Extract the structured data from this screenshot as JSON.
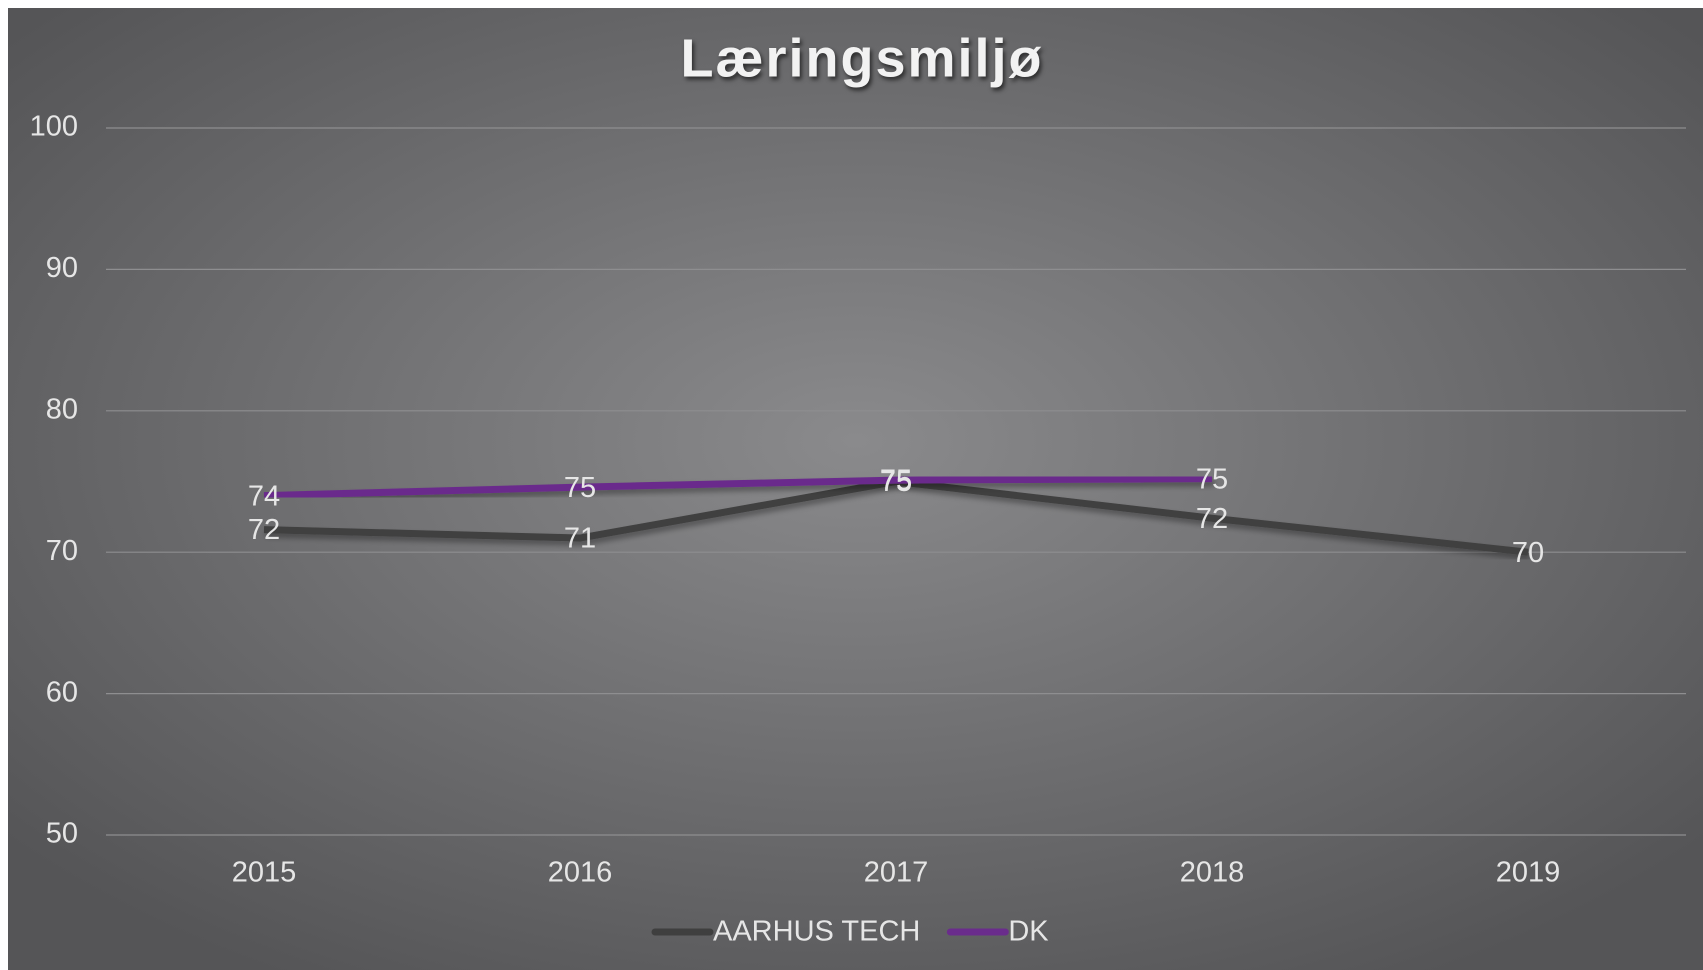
{
  "chart_data": {
    "type": "line",
    "title": "Læringsmiljø",
    "categories": [
      "2015",
      "2016",
      "2017",
      "2018",
      "2019"
    ],
    "series": [
      {
        "name": "AARHUS TECH",
        "color": "#3f3f3f",
        "values": [
          71.6,
          71,
          75,
          72.4,
          70
        ],
        "value_labels": [
          "72",
          "71",
          "75",
          "72",
          "70"
        ]
      },
      {
        "name": "DK",
        "color": "#6a2c8c",
        "values": [
          74,
          74.6,
          75.1,
          75.2,
          null
        ],
        "value_labels": [
          "74",
          "75",
          "75",
          "75",
          null
        ]
      }
    ],
    "ylim": [
      50,
      100
    ],
    "yticks": [
      50,
      60,
      70,
      80,
      90,
      100
    ],
    "grid": true,
    "legend": "bottom"
  }
}
